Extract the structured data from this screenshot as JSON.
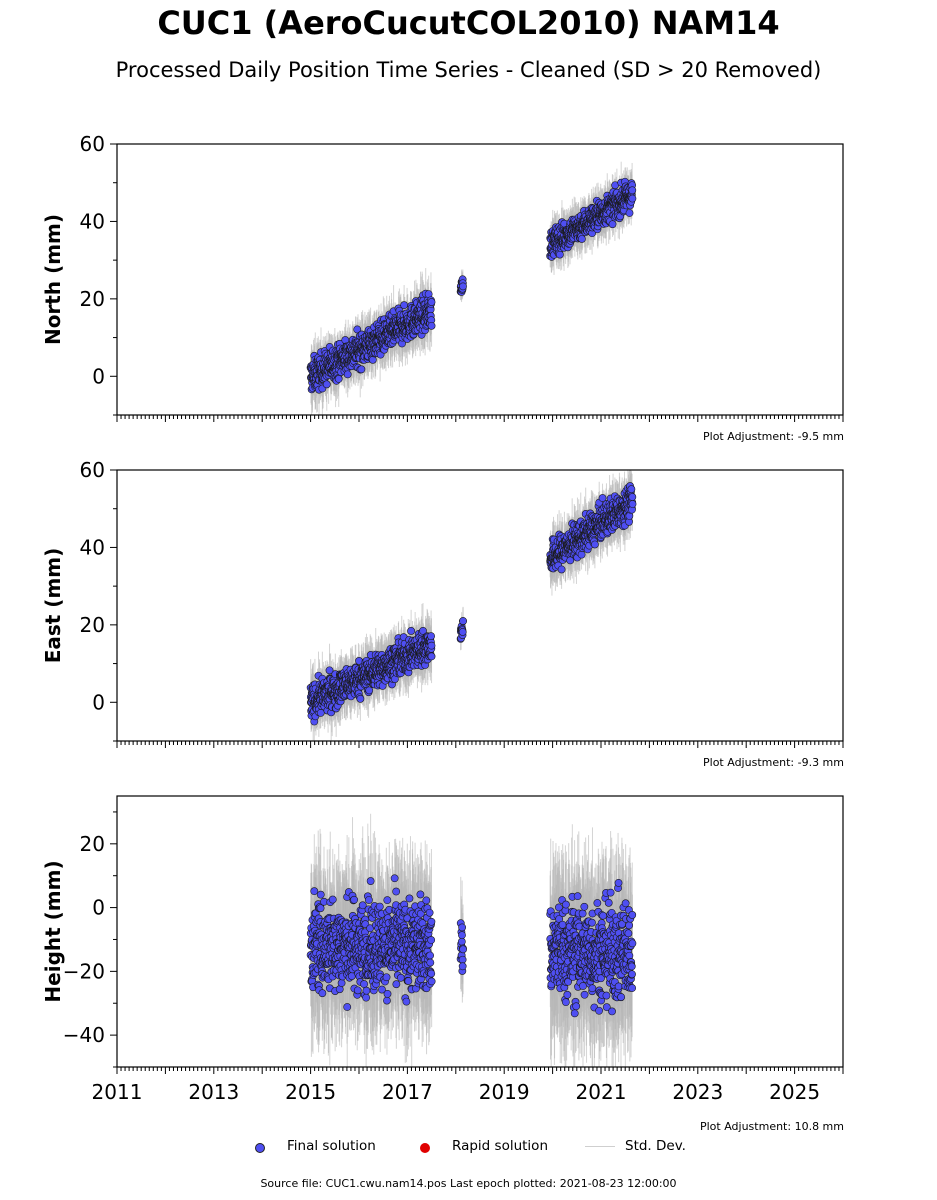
{
  "title": "CUC1 (AeroCucutCOL2010) NAM14",
  "subtitle": "Processed Daily Position Time Series - Cleaned (SD > 20 Removed)",
  "chart_data": [
    {
      "type": "scatter",
      "panel": "north",
      "ylabel": "North (mm)",
      "ylim": [
        -10,
        60
      ],
      "yticks": [
        0,
        20,
        40,
        60
      ],
      "xlim": [
        2011,
        2026
      ],
      "adjustment": "Plot Adjustment: -9.5 mm",
      "segments": [
        {
          "x": [
            2015.0,
            2017.5
          ],
          "y": [
            0,
            17
          ],
          "scatter": 3
        },
        {
          "x": [
            2018.1,
            2018.15
          ],
          "y": [
            22,
            24
          ],
          "scatter": 1.5
        },
        {
          "x": [
            2019.95,
            2021.65
          ],
          "y": [
            34,
            47
          ],
          "scatter": 2.5
        }
      ]
    },
    {
      "type": "scatter",
      "panel": "east",
      "ylabel": "East (mm)",
      "ylim": [
        -10,
        60
      ],
      "yticks": [
        0,
        20,
        40,
        60
      ],
      "xlim": [
        2011,
        2026
      ],
      "adjustment": "Plot Adjustment: -9.3 mm",
      "segments": [
        {
          "x": [
            2015.0,
            2017.5
          ],
          "y": [
            0,
            15
          ],
          "scatter": 3
        },
        {
          "x": [
            2018.1,
            2018.15
          ],
          "y": [
            17,
            20
          ],
          "scatter": 1.5
        },
        {
          "x": [
            2019.95,
            2021.65
          ],
          "y": [
            37,
            52
          ],
          "scatter": 3
        }
      ]
    },
    {
      "type": "scatter",
      "panel": "height",
      "ylabel": "Height (mm)",
      "ylim": [
        -50,
        35
      ],
      "yticks": [
        -40,
        -20,
        0,
        20
      ],
      "xlim": [
        2011,
        2026
      ],
      "xticks": [
        "2011",
        "2013",
        "2015",
        "2017",
        "2019",
        "2021",
        "2023",
        "2025"
      ],
      "adjustment": "Plot Adjustment: 10.8 mm",
      "segments": [
        {
          "x": [
            2015.0,
            2017.5
          ],
          "y": [
            -12,
            -12
          ],
          "scatter": 10
        },
        {
          "x": [
            2018.1,
            2018.15
          ],
          "y": [
            -13,
            -13
          ],
          "scatter": 6
        },
        {
          "x": [
            2019.95,
            2021.65
          ],
          "y": [
            -14,
            -14
          ],
          "scatter": 11
        }
      ]
    }
  ],
  "legend": {
    "final": "Final solution",
    "rapid": "Rapid solution",
    "std": "Std. Dev."
  },
  "colors": {
    "final": "#4f4ff2",
    "rapid": "#e00000",
    "std": "#b8b8b8"
  },
  "source": "Source file: CUC1.cwu.nam14.pos  Last epoch plotted: 2021-08-23 12:00:00"
}
